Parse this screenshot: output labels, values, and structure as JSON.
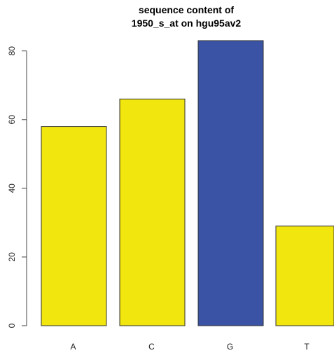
{
  "chart_data": {
    "type": "bar",
    "title_lines": [
      "sequence content of",
      "1950_s_at on hgu95av2"
    ],
    "categories": [
      "A",
      "C",
      "G",
      "T"
    ],
    "values": [
      58,
      66,
      83,
      29
    ],
    "bar_colors": [
      "#F2E60F",
      "#F2E60F",
      "#3A53A4",
      "#F2E60F"
    ],
    "ylim": [
      0,
      83
    ],
    "yticks": [
      0,
      20,
      40,
      60,
      80
    ],
    "xlabel": "",
    "ylabel": "",
    "grid": false
  },
  "colors": {
    "highlight": "#3A53A4",
    "base": "#F2E60F"
  }
}
